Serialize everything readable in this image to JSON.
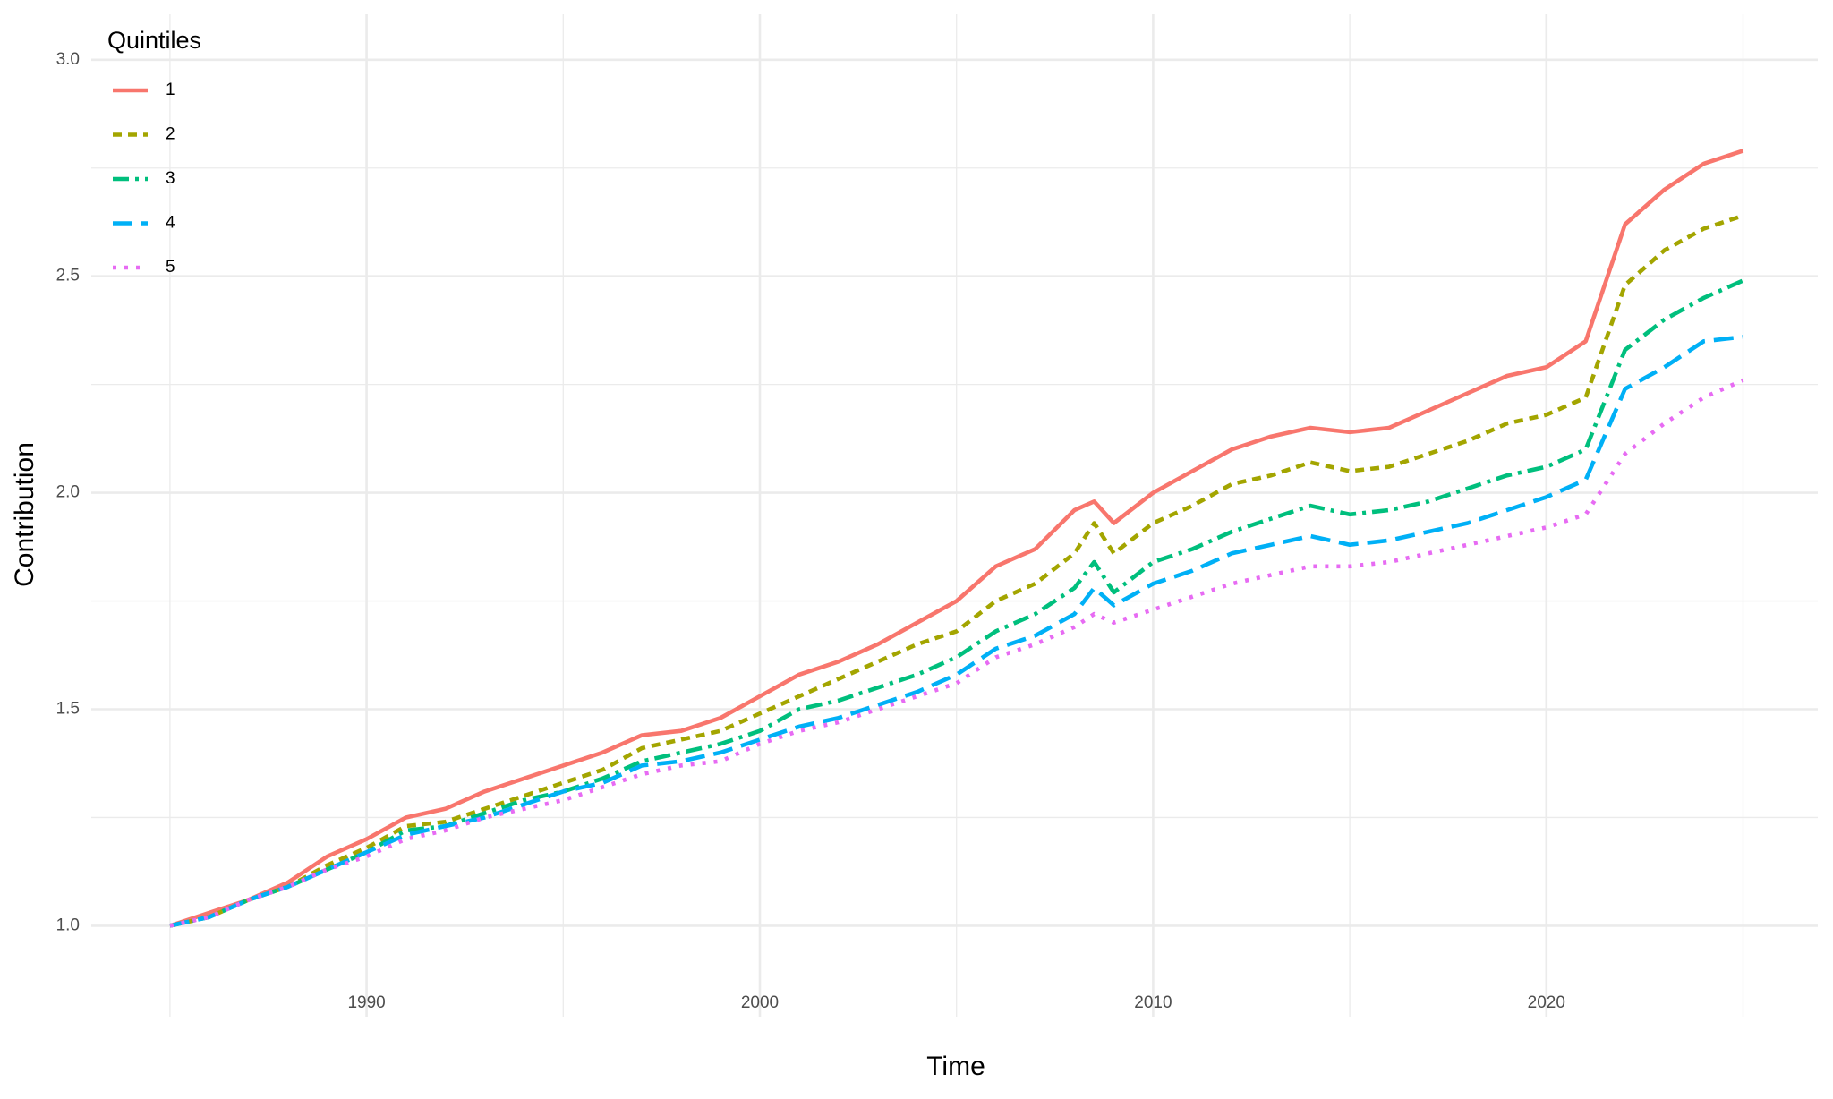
{
  "chart_data": {
    "type": "line",
    "x_label": "Time",
    "y_label": "Contribution",
    "legend_title": "Quintiles",
    "legend_position": "top-left",
    "grid": true,
    "xlim": [
      1983,
      2026.9
    ],
    "ylim": [
      0.79,
      3.105
    ],
    "xticks": [
      1990,
      2000,
      2010,
      2020
    ],
    "yticks": [
      {
        "value": 1,
        "label": "1.0"
      },
      {
        "value": 1.5,
        "label": "1.5"
      },
      {
        "value": 2,
        "label": "2.0"
      },
      {
        "value": 2.5,
        "label": "2.5"
      },
      {
        "value": 3,
        "label": "3.0"
      }
    ],
    "x": [
      1985,
      1986,
      1987,
      1988,
      1989,
      1990,
      1991,
      1992,
      1993,
      1994,
      1995,
      1996,
      1997,
      1998,
      1999,
      2000,
      2001,
      2002,
      2003,
      2004,
      2005,
      2006,
      2007,
      2008,
      2008.5,
      2009,
      2010,
      2011,
      2012,
      2013,
      2014,
      2015,
      2016,
      2017,
      2018,
      2019,
      2020,
      2021,
      2022,
      2023,
      2024,
      2025
    ],
    "series": [
      {
        "name": "1",
        "color": "#F8766D",
        "values": [
          1.0,
          1.03,
          1.06,
          1.1,
          1.16,
          1.2,
          1.25,
          1.27,
          1.31,
          1.34,
          1.37,
          1.4,
          1.44,
          1.45,
          1.48,
          1.53,
          1.58,
          1.61,
          1.65,
          1.7,
          1.75,
          1.83,
          1.87,
          1.96,
          1.98,
          1.93,
          2.0,
          2.05,
          2.1,
          2.13,
          2.15,
          2.14,
          2.15,
          2.19,
          2.23,
          2.27,
          2.29,
          2.35,
          2.62,
          2.7,
          2.76,
          2.79
        ]
      },
      {
        "name": "2",
        "color": "#A3A500",
        "values": [
          1.0,
          1.02,
          1.06,
          1.09,
          1.14,
          1.18,
          1.23,
          1.24,
          1.27,
          1.3,
          1.33,
          1.36,
          1.41,
          1.43,
          1.45,
          1.49,
          1.53,
          1.57,
          1.61,
          1.65,
          1.68,
          1.75,
          1.79,
          1.86,
          1.93,
          1.86,
          1.93,
          1.97,
          2.02,
          2.04,
          2.07,
          2.05,
          2.06,
          2.09,
          2.12,
          2.16,
          2.18,
          2.22,
          2.48,
          2.56,
          2.61,
          2.64
        ]
      },
      {
        "name": "3",
        "color": "#00BF7D",
        "values": [
          1.0,
          1.02,
          1.06,
          1.09,
          1.13,
          1.17,
          1.22,
          1.23,
          1.26,
          1.29,
          1.31,
          1.34,
          1.38,
          1.4,
          1.42,
          1.45,
          1.5,
          1.52,
          1.55,
          1.58,
          1.62,
          1.68,
          1.72,
          1.78,
          1.84,
          1.77,
          1.84,
          1.87,
          1.91,
          1.94,
          1.97,
          1.95,
          1.96,
          1.98,
          2.01,
          2.04,
          2.06,
          2.1,
          2.33,
          2.4,
          2.45,
          2.49
        ]
      },
      {
        "name": "4",
        "color": "#00B0F6",
        "values": [
          1.0,
          1.02,
          1.06,
          1.09,
          1.13,
          1.17,
          1.21,
          1.23,
          1.25,
          1.28,
          1.31,
          1.33,
          1.37,
          1.38,
          1.4,
          1.43,
          1.46,
          1.48,
          1.51,
          1.54,
          1.58,
          1.64,
          1.67,
          1.72,
          1.78,
          1.74,
          1.79,
          1.82,
          1.86,
          1.88,
          1.9,
          1.88,
          1.89,
          1.91,
          1.93,
          1.96,
          1.99,
          2.03,
          2.24,
          2.29,
          2.35,
          2.36
        ]
      },
      {
        "name": "5",
        "color": "#E76BF3",
        "values": [
          1.0,
          1.02,
          1.06,
          1.09,
          1.13,
          1.16,
          1.2,
          1.22,
          1.25,
          1.27,
          1.29,
          1.32,
          1.35,
          1.37,
          1.38,
          1.42,
          1.45,
          1.47,
          1.5,
          1.53,
          1.56,
          1.62,
          1.65,
          1.69,
          1.72,
          1.7,
          1.73,
          1.76,
          1.79,
          1.81,
          1.83,
          1.83,
          1.84,
          1.86,
          1.88,
          1.9,
          1.92,
          1.95,
          2.09,
          2.16,
          2.22,
          2.26
        ]
      }
    ]
  }
}
